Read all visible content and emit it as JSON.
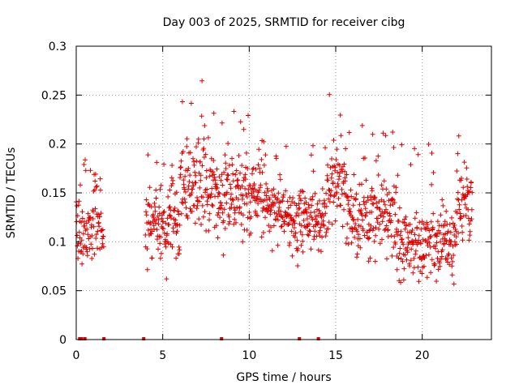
{
  "chart_data": {
    "type": "scatter",
    "title": "Day 003 of 2025, SRMTID for receiver cibg",
    "xlabel": "GPS time / hours",
    "ylabel": "SRMTID / TECUs",
    "xlim": [
      0,
      24
    ],
    "ylim": [
      0,
      0.3
    ],
    "x_ticks": [
      0,
      5,
      10,
      15,
      20
    ],
    "x_tick_labels": [
      "0",
      "5",
      "10",
      "15",
      "20"
    ],
    "y_ticks": [
      0,
      0.05,
      0.1,
      0.15,
      0.2,
      0.25,
      0.3
    ],
    "y_tick_labels": [
      "0",
      "0.05",
      "0.1",
      "0.15",
      "0.2",
      "0.25",
      "0.3"
    ],
    "grid": true,
    "marker": "plus",
    "series_color": "#e00000",
    "series": [
      {
        "name": "SRMTID",
        "segments": [
          {
            "start": 0.0,
            "end": 1.6,
            "mean": 0.115,
            "spread": 0.03,
            "max": 0.19
          },
          {
            "start": 4.0,
            "end": 6.0,
            "mean": 0.115,
            "spread": 0.03,
            "max": 0.19
          },
          {
            "start": 6.0,
            "end": 8.0,
            "mean": 0.16,
            "spread": 0.04,
            "max": 0.27
          },
          {
            "start": 8.0,
            "end": 11.0,
            "mean": 0.145,
            "spread": 0.035,
            "max": 0.24
          },
          {
            "start": 11.0,
            "end": 14.5,
            "mean": 0.125,
            "spread": 0.03,
            "max": 0.2
          },
          {
            "start": 14.5,
            "end": 15.6,
            "mean": 0.165,
            "spread": 0.035,
            "max": 0.26
          },
          {
            "start": 15.6,
            "end": 18.5,
            "mean": 0.125,
            "spread": 0.03,
            "max": 0.22
          },
          {
            "start": 18.5,
            "end": 20.6,
            "mean": 0.095,
            "spread": 0.03,
            "max": 0.2
          },
          {
            "start": 20.6,
            "end": 22.0,
            "mean": 0.1,
            "spread": 0.03,
            "max": 0.23
          },
          {
            "start": 22.0,
            "end": 22.9,
            "mean": 0.135,
            "spread": 0.03,
            "max": 0.21
          }
        ],
        "zero_points": [
          0.2,
          0.3,
          0.5,
          1.6,
          3.9,
          8.4,
          12.9,
          14.0
        ]
      }
    ]
  }
}
